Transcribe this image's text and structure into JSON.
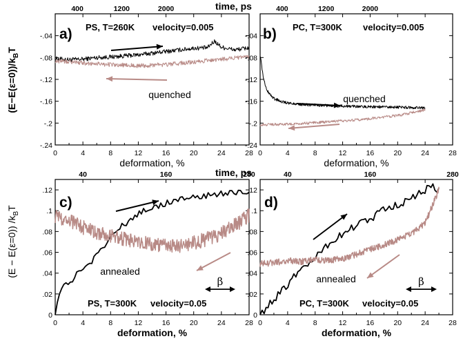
{
  "figure": {
    "ylabel_top": "(E−E(ε=0))/k",
    "ylabel_top_sub": "B",
    "ylabel_top_tail": "T",
    "ylabel_bottom": "(E − E(ε=0)) /k",
    "ylabel_bottom_sub": "B",
    "ylabel_bottom_tail": "T",
    "colors": {
      "forward": "#000000",
      "reverse": "#b88a86",
      "frame": "#000000"
    }
  },
  "chart_data": [
    {
      "id": "a",
      "type": "line",
      "panel_label": "a)",
      "condition": "PS, T=260K",
      "velocity_text": "velocity=0.005",
      "annotation": "quenched",
      "xlabel": "deformation, %",
      "top_axis_label": "time, ps",
      "top_ticks": [
        "400",
        "1200",
        "2000"
      ],
      "top_tick_positions": [
        3.2,
        9.6,
        16.0
      ],
      "xlim": [
        0,
        28
      ],
      "xticks": [
        0,
        4,
        8,
        12,
        16,
        20,
        24,
        28
      ],
      "ylim": [
        -0.24,
        0
      ],
      "yticks": [
        -0.24,
        -0.2,
        -0.16,
        -0.12,
        -0.08,
        -0.04
      ],
      "series": [
        {
          "role": "forward",
          "x": [
            0,
            2,
            4,
            6,
            8,
            10,
            12,
            14,
            16,
            18,
            20,
            22,
            23,
            24,
            26,
            28
          ],
          "y": [
            -0.082,
            -0.084,
            -0.083,
            -0.08,
            -0.079,
            -0.077,
            -0.075,
            -0.072,
            -0.069,
            -0.066,
            -0.063,
            -0.062,
            -0.05,
            -0.061,
            -0.066,
            -0.062
          ],
          "noise": 0.004
        },
        {
          "role": "reverse",
          "x": [
            0,
            4,
            8,
            12,
            16,
            20,
            24,
            28
          ],
          "y": [
            -0.086,
            -0.09,
            -0.093,
            -0.095,
            -0.093,
            -0.088,
            -0.083,
            -0.079
          ],
          "noise": 0.004
        }
      ]
    },
    {
      "id": "b",
      "type": "line",
      "panel_label": "b)",
      "condition": "PC, T=300K",
      "velocity_text": "velocity=0.005",
      "annotation": "quenched",
      "xlabel": "deformation, %",
      "top_axis_label": "",
      "top_ticks": [
        "400",
        "1200",
        "2000"
      ],
      "top_tick_positions": [
        3.2,
        9.6,
        16.0
      ],
      "xlim": [
        0,
        28
      ],
      "xticks": [
        0,
        4,
        8,
        12,
        16,
        20,
        24,
        28
      ],
      "ylim": [
        -0.24,
        0
      ],
      "yticks": [
        -0.24,
        -0.2,
        -0.16,
        -0.12,
        -0.08,
        -0.04
      ],
      "series": [
        {
          "role": "forward",
          "x": [
            0,
            0.5,
            1,
            1.5,
            2,
            3,
            4,
            6,
            8,
            12,
            16,
            20,
            24
          ],
          "y": [
            -0.075,
            -0.12,
            -0.14,
            -0.149,
            -0.155,
            -0.16,
            -0.163,
            -0.166,
            -0.167,
            -0.169,
            -0.17,
            -0.171,
            -0.172
          ],
          "noise": 0.0025
        },
        {
          "role": "reverse",
          "x": [
            0,
            4,
            8,
            12,
            16,
            20,
            24
          ],
          "y": [
            -0.203,
            -0.202,
            -0.199,
            -0.196,
            -0.192,
            -0.186,
            -0.176
          ],
          "noise": 0.0025
        }
      ]
    },
    {
      "id": "c",
      "type": "line",
      "panel_label": "c)",
      "condition": "PS, T=300K",
      "velocity_text": "velocity=0.05",
      "annotation": "annealed",
      "beta_symbol": "β",
      "xlabel": "deformation, %",
      "top_axis_label": "time, ps",
      "top_ticks": [
        "40",
        "160",
        "280"
      ],
      "top_tick_positions": [
        4,
        16,
        28
      ],
      "xlim": [
        0,
        28
      ],
      "xticks": [
        0,
        4,
        8,
        12,
        16,
        20,
        24,
        28
      ],
      "ylim": [
        0,
        0.13
      ],
      "yticks": [
        0,
        0.02,
        0.04,
        0.06,
        0.08,
        0.1,
        0.12
      ],
      "series": [
        {
          "role": "forward",
          "x": [
            0,
            0.5,
            1,
            2,
            3,
            4,
            5,
            6,
            7,
            8,
            9,
            10,
            11,
            12,
            14,
            16,
            18,
            20,
            22,
            24,
            26,
            28
          ],
          "y": [
            0.0,
            0.018,
            0.025,
            0.03,
            0.038,
            0.043,
            0.05,
            0.057,
            0.065,
            0.074,
            0.081,
            0.087,
            0.092,
            0.097,
            0.103,
            0.107,
            0.111,
            0.113,
            0.115,
            0.117,
            0.118,
            0.118
          ],
          "noise": 0.003
        },
        {
          "role": "reverse",
          "x": [
            0,
            2,
            4,
            6,
            8,
            10,
            12,
            14,
            16,
            18,
            20,
            22,
            24,
            26,
            28
          ],
          "y": [
            0.095,
            0.09,
            0.084,
            0.079,
            0.075,
            0.073,
            0.071,
            0.068,
            0.066,
            0.066,
            0.069,
            0.073,
            0.078,
            0.086,
            0.096
          ],
          "noise": 0.007
        }
      ]
    },
    {
      "id": "d",
      "type": "line",
      "panel_label": "d)",
      "condition": "PC, T=300K",
      "velocity_text": "velocity=0.05",
      "annotation": "annealed",
      "beta_symbol": "β",
      "xlabel": "deformation, %",
      "top_axis_label": "",
      "top_ticks": [
        "40",
        "160",
        "280"
      ],
      "top_tick_positions": [
        4,
        16,
        28
      ],
      "xlim": [
        0,
        28
      ],
      "xticks": [
        0,
        4,
        8,
        12,
        16,
        20,
        24,
        28
      ],
      "ylim": [
        0,
        0.13
      ],
      "yticks": [
        0,
        0.02,
        0.04,
        0.06,
        0.08,
        0.1,
        0.12
      ],
      "series": [
        {
          "role": "forward",
          "x": [
            0,
            2,
            4,
            6,
            8,
            10,
            12,
            14,
            16,
            18,
            20,
            22,
            24,
            25,
            26
          ],
          "y": [
            0.0,
            0.015,
            0.03,
            0.045,
            0.057,
            0.068,
            0.077,
            0.086,
            0.093,
            0.1,
            0.106,
            0.112,
            0.12,
            0.124,
            0.12
          ],
          "noise": 0.004
        },
        {
          "role": "reverse",
          "x": [
            0,
            2,
            4,
            6,
            8,
            10,
            12,
            14,
            16,
            18,
            20,
            22,
            24,
            26
          ],
          "y": [
            0.049,
            0.05,
            0.052,
            0.051,
            0.053,
            0.052,
            0.054,
            0.058,
            0.063,
            0.067,
            0.072,
            0.078,
            0.088,
            0.12
          ],
          "noise": 0.003
        }
      ]
    }
  ]
}
